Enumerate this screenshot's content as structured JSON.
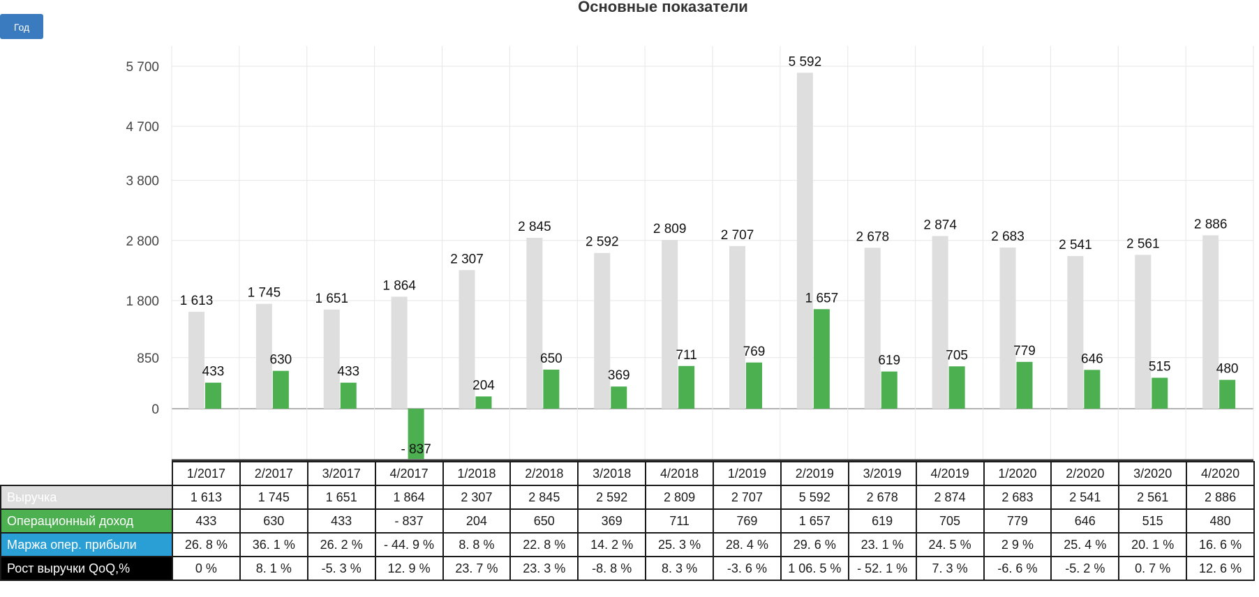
{
  "chart_data": {
    "type": "bar",
    "title": "Основные показатели",
    "categories": [
      "1/2017",
      "2/2017",
      "3/2017",
      "4/2017",
      "1/2018",
      "2/2018",
      "3/2018",
      "4/2018",
      "1/2019",
      "2/2019",
      "3/2019",
      "4/2019",
      "1/2020",
      "2/2020",
      "3/2020",
      "4/2020"
    ],
    "series": [
      {
        "name": "Выручка",
        "color": "#dedede",
        "values": [
          1613,
          1745,
          1651,
          1864,
          2307,
          2845,
          2592,
          2809,
          2707,
          5592,
          2678,
          2874,
          2683,
          2541,
          2561,
          2886
        ],
        "labels": [
          "1 613",
          "1 745",
          "1 651",
          "1 864",
          "2 307",
          "2 845",
          "2 592",
          "2 809",
          "2 707",
          "5 592",
          "2 678",
          "2 874",
          "2 683",
          "2 541",
          "2 561",
          "2 886"
        ]
      },
      {
        "name": "Операционный доход",
        "color": "#4caf50",
        "values": [
          433,
          630,
          433,
          -837,
          204,
          650,
          369,
          711,
          769,
          1657,
          619,
          705,
          779,
          646,
          515,
          480
        ],
        "labels": [
          "433",
          "630",
          "433",
          "- 837",
          "204",
          "650",
          "369",
          "711",
          "769",
          "1 657",
          "619",
          "705",
          "779",
          "646",
          "515",
          "480"
        ]
      }
    ],
    "yticks": [
      {
        "value": 5700,
        "label": "5 700"
      },
      {
        "value": 4700,
        "label": "4 700"
      },
      {
        "value": 3800,
        "label": "3 800"
      },
      {
        "value": 2800,
        "label": "2 800"
      },
      {
        "value": 1800,
        "label": "1 800"
      },
      {
        "value": 850,
        "label": "850"
      },
      {
        "value": 0,
        "label": "0"
      }
    ],
    "ylim": [
      -900,
      6000
    ],
    "grid": true
  },
  "period_button": "Год",
  "table": {
    "rows": [
      {
        "label": "Выручка",
        "label_bg": "#dedede",
        "label_color": "#ffffff",
        "cells": [
          "1 613",
          "1 745",
          "1 651",
          "1 864",
          "2 307",
          "2 845",
          "2 592",
          "2 809",
          "2 707",
          "5 592",
          "2 678",
          "2 874",
          "2 683",
          "2 541",
          "2 561",
          "2 886"
        ]
      },
      {
        "label": "Операционный доход",
        "label_bg": "#4caf50",
        "label_color": "#ffffff",
        "cells": [
          "433",
          "630",
          "433",
          "- 837",
          "204",
          "650",
          "369",
          "711",
          "769",
          "1 657",
          "619",
          "705",
          "779",
          "646",
          "515",
          "480"
        ]
      },
      {
        "label": "Маржа опер. прибыли",
        "label_bg": "#2a9fd6",
        "label_color": "#ffffff",
        "cells": [
          "26. 8 %",
          "36. 1 %",
          "26. 2 %",
          "- 44. 9 %",
          "8. 8 %",
          "22. 8 %",
          "14. 2 %",
          "25. 3 %",
          "28. 4 %",
          "29. 6 %",
          "23. 1 %",
          "24. 5 %",
          "2 9 %",
          "25. 4 %",
          "20. 1 %",
          "16. 6 %"
        ]
      },
      {
        "label": "Рост выручки QoQ,%",
        "label_bg": "#000000",
        "label_color": "#ffffff",
        "cells": [
          "0 %",
          "8. 1 %",
          "-5. 3 %",
          "12. 9 %",
          "23. 7 %",
          "23. 3 %",
          "-8. 8 %",
          "8. 3 %",
          "-3. 6 %",
          "1 06. 5 %",
          "- 52. 1 %",
          "7. 3 %",
          "-6. 6 %",
          "-5. 2 %",
          "0. 7 %",
          "12. 6 %"
        ]
      }
    ]
  }
}
